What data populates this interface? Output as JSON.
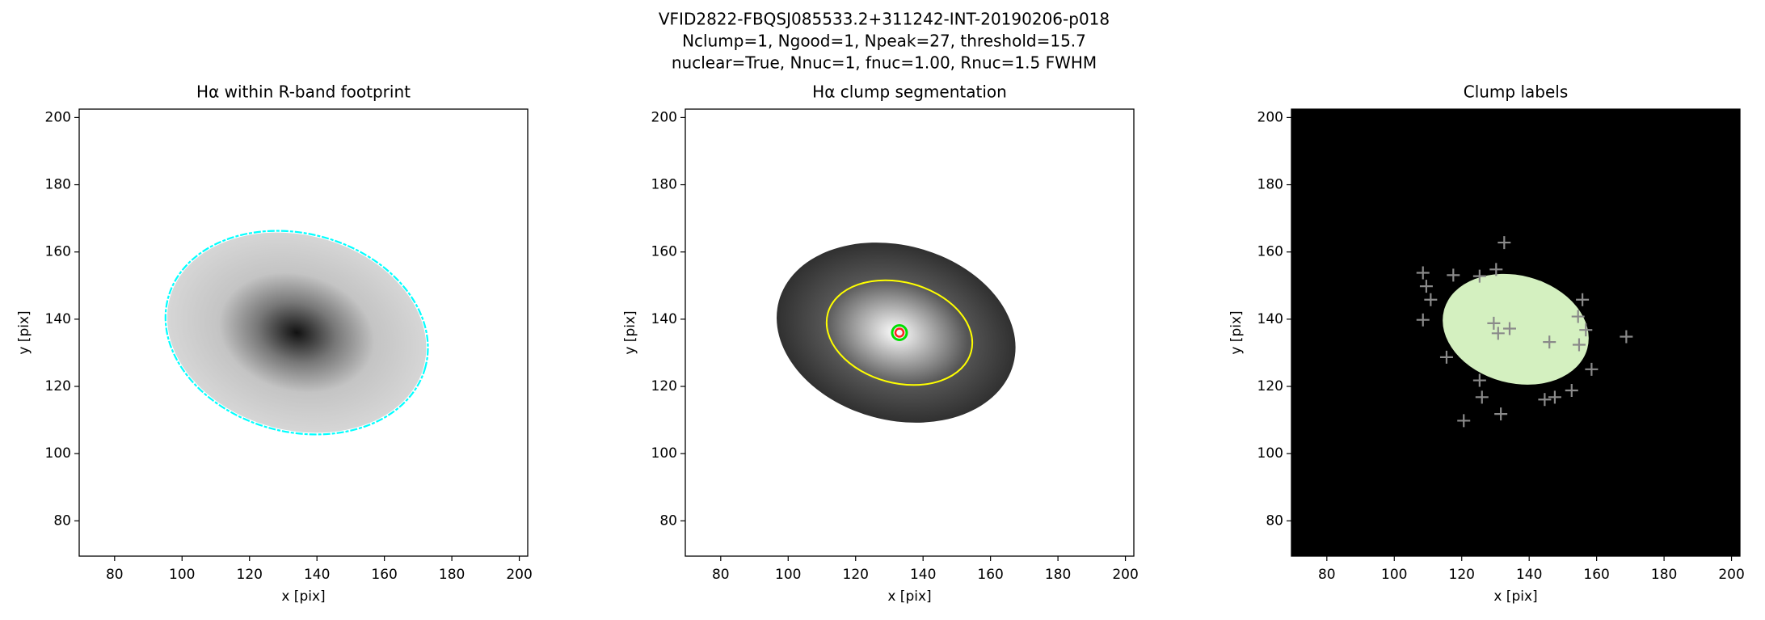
{
  "figure": {
    "title_lines": [
      "VFID2822-FBQSJ085533.2+311242-INT-20190206-p018",
      "Nclump=1, Ngood=1, Npeak=27, threshold=15.7",
      "nuclear=True, Nnuc=1, fnuc=1.00, Rnuc=1.5 FWHM"
    ]
  },
  "chart_data": [
    {
      "type": "image",
      "title": "Hα within R-band footprint",
      "xlabel": "x [pix]",
      "ylabel": "y [pix]",
      "xlim": [
        69.5,
        202.5
      ],
      "ylim": [
        69.5,
        202.5
      ],
      "xticks": [
        80,
        100,
        120,
        140,
        160,
        180,
        200
      ],
      "yticks": [
        80,
        100,
        120,
        140,
        160,
        180,
        200
      ]
    },
    {
      "type": "image",
      "title": "Hα clump segmentation",
      "xlabel": "x [pix]",
      "ylabel": "y [pix]",
      "xlim": [
        69.5,
        202.5
      ],
      "ylim": [
        69.5,
        202.5
      ],
      "xticks": [
        80,
        100,
        120,
        140,
        160,
        180,
        200
      ],
      "yticks": [
        80,
        100,
        120,
        140,
        160,
        180,
        200
      ],
      "points": {
        "x": [
          133
        ],
        "y": [
          136
        ],
        "color": "#00e000"
      }
    },
    {
      "type": "image",
      "title": "Clump labels",
      "xlabel": "x [pix]",
      "ylabel": "y [pix]",
      "xlim": [
        69.5,
        202.5
      ],
      "ylim": [
        69.5,
        202.5
      ],
      "xticks": [
        80,
        100,
        120,
        140,
        160,
        180,
        200
      ],
      "yticks": [
        80,
        100,
        120,
        140,
        160,
        180,
        200
      ],
      "points": {
        "x": [
          132.6,
          108.5,
          109.5,
          110.8,
          108.5,
          117.5,
          130.2,
          125.3,
          155.8,
          154.5,
          156.8,
          168.8,
          146.0,
          129.5,
          130.8,
          134.2,
          115.5,
          154.8,
          158.5,
          125.3,
          126.0,
          120.6,
          131.6,
          144.6,
          147.6,
          152.6
        ],
        "y": [
          162.8,
          153.8,
          149.8,
          145.8,
          139.8,
          153.1,
          154.8,
          152.8,
          145.8,
          140.8,
          136.8,
          134.8,
          133.2,
          138.8,
          135.8,
          137.2,
          128.7,
          132.4,
          125.1,
          121.8,
          116.8,
          109.8,
          111.8,
          116.1,
          116.8,
          118.8
        ],
        "color": "#8a8a8a"
      }
    }
  ]
}
